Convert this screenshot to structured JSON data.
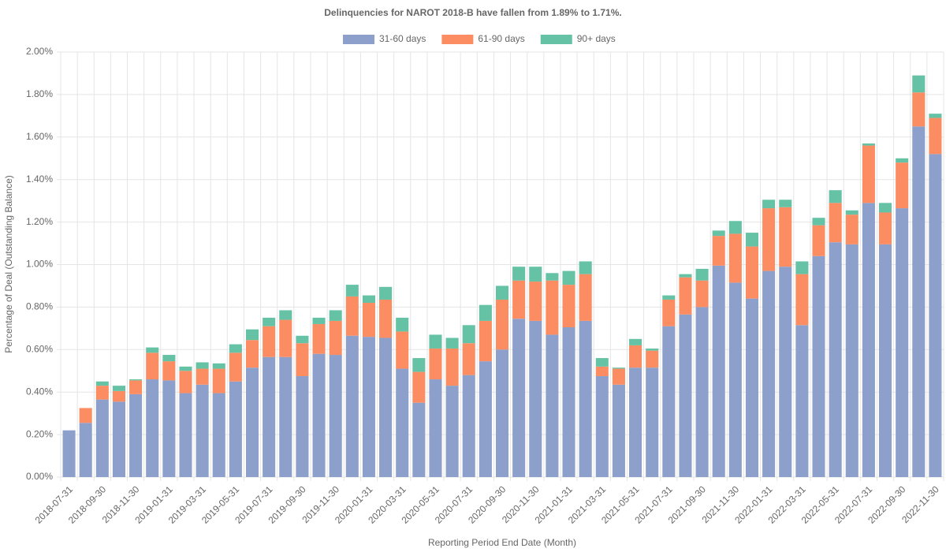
{
  "chart_data": {
    "type": "stacked-bar",
    "title": "Delinquencies for NAROT 2018-B have fallen from 1.89% to 1.71%.",
    "x_label": "Reporting Period End Date (Month)",
    "y_label": "Percentage of Deal (Outstanding Balance)",
    "categories": [
      "2018-07-31",
      null,
      "2018-09-30",
      null,
      "2018-11-30",
      null,
      "2019-01-31",
      null,
      "2019-03-31",
      null,
      "2019-05-31",
      null,
      "2019-07-31",
      null,
      "2019-09-30",
      null,
      "2019-11-30",
      null,
      "2020-01-31",
      null,
      "2020-03-31",
      null,
      "2020-05-31",
      null,
      "2020-07-31",
      null,
      "2020-09-30",
      null,
      "2020-11-30",
      null,
      "2021-01-31",
      null,
      "2021-03-31",
      null,
      "2021-05-31",
      null,
      "2021-07-31",
      null,
      "2021-09-30",
      null,
      "2021-11-30",
      null,
      "2022-01-31",
      null,
      "2022-03-31",
      null,
      "2022-05-31",
      null,
      "2022-07-31",
      null,
      "2022-09-30",
      null,
      "2022-11-30"
    ],
    "series": [
      {
        "name": "31-60 days",
        "color": "#8da0cb",
        "values": [
          0.22,
          0.255,
          0.365,
          0.355,
          0.39,
          0.46,
          0.455,
          0.395,
          0.435,
          0.395,
          0.45,
          0.515,
          0.565,
          0.565,
          0.475,
          0.58,
          0.575,
          0.665,
          0.66,
          0.655,
          0.51,
          0.35,
          0.46,
          0.43,
          0.48,
          0.545,
          0.6,
          0.745,
          0.735,
          0.67,
          0.705,
          0.735,
          0.475,
          0.435,
          0.515,
          0.515,
          0.71,
          0.765,
          0.8,
          0.995,
          0.915,
          0.84,
          0.97,
          0.99,
          0.715,
          1.04,
          1.105,
          1.095,
          1.29,
          1.095,
          1.265,
          1.65,
          1.52
        ]
      },
      {
        "name": "61-90 days",
        "color": "#fc8d62",
        "values": [
          0,
          0.07,
          0.065,
          0.05,
          0.065,
          0.125,
          0.09,
          0.105,
          0.075,
          0.115,
          0.135,
          0.13,
          0.145,
          0.175,
          0.155,
          0.14,
          0.16,
          0.185,
          0.16,
          0.18,
          0.175,
          0.145,
          0.145,
          0.175,
          0.15,
          0.19,
          0.235,
          0.18,
          0.185,
          0.255,
          0.2,
          0.22,
          0.045,
          0.075,
          0.105,
          0.08,
          0.125,
          0.175,
          0.125,
          0.14,
          0.23,
          0.245,
          0.295,
          0.28,
          0.24,
          0.145,
          0.185,
          0.14,
          0.27,
          0.15,
          0.215,
          0.16,
          0.17
        ]
      },
      {
        "name": "90+ days",
        "color": "#66c2a5",
        "values": [
          0,
          0,
          0.02,
          0.025,
          0.005,
          0.025,
          0.03,
          0.02,
          0.03,
          0.025,
          0.04,
          0.05,
          0.04,
          0.045,
          0.035,
          0.03,
          0.05,
          0.055,
          0.035,
          0.06,
          0.065,
          0.065,
          0.065,
          0.05,
          0.085,
          0.075,
          0.065,
          0.065,
          0.07,
          0.035,
          0.065,
          0.06,
          0.04,
          0.005,
          0.03,
          0.01,
          0.02,
          0.015,
          0.055,
          0.025,
          0.06,
          0.065,
          0.04,
          0.035,
          0.06,
          0.035,
          0.06,
          0.02,
          0.01,
          0.045,
          0.02,
          0.08,
          0.02
        ]
      }
    ],
    "ylim": [
      0,
      2
    ],
    "yticks": [
      {
        "value": 0,
        "label": "0.00%"
      },
      {
        "value": 0.2,
        "label": "0.20%"
      },
      {
        "value": 0.4,
        "label": "0.40%"
      },
      {
        "value": 0.6,
        "label": "0.60%"
      },
      {
        "value": 0.8,
        "label": "0.80%"
      },
      {
        "value": 1,
        "label": "1.00%"
      },
      {
        "value": 1.2,
        "label": "1.20%"
      },
      {
        "value": 1.4,
        "label": "1.40%"
      },
      {
        "value": 1.6,
        "label": "1.60%"
      },
      {
        "value": 1.8,
        "label": "1.80%"
      },
      {
        "value": 2,
        "label": "2.00%"
      }
    ],
    "grid": true,
    "legend": "top"
  }
}
